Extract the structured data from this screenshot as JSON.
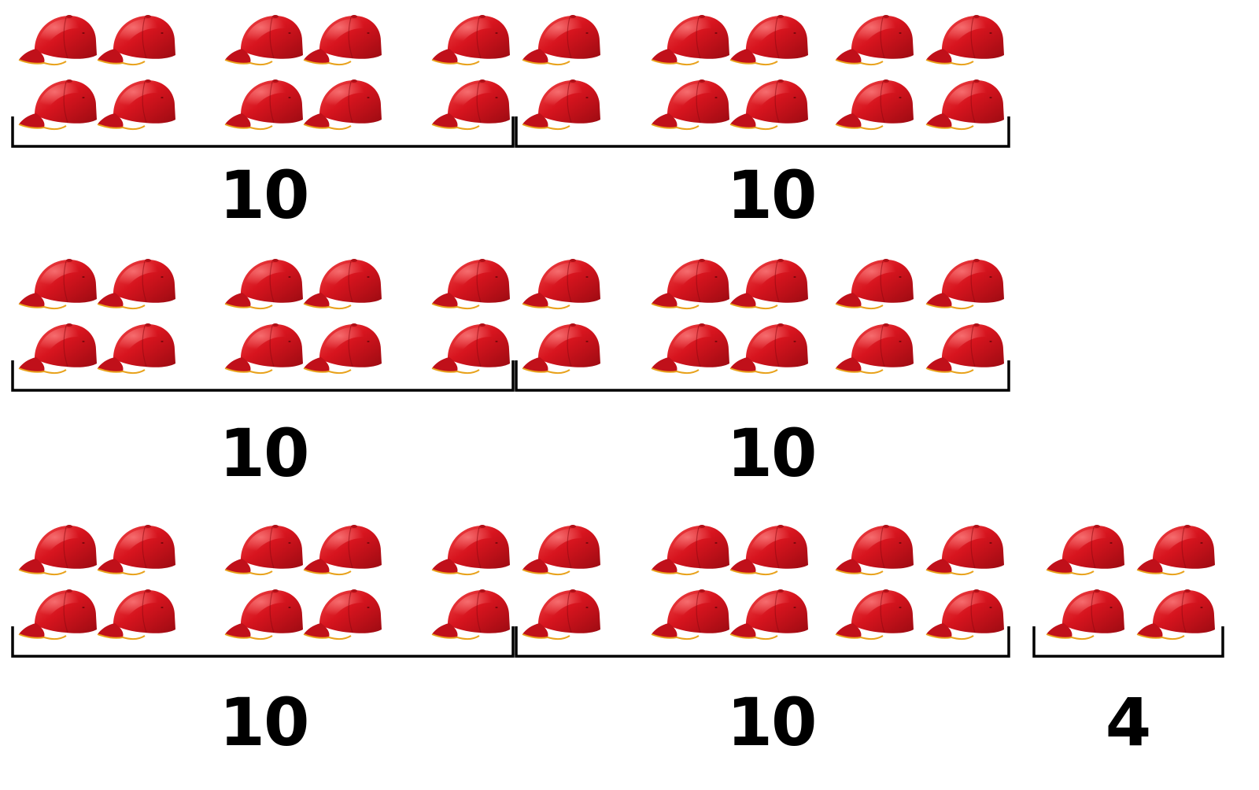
{
  "colors": {
    "cap_main": "#d7141e",
    "cap_dark": "#a10c14",
    "cap_light": "#ef5a5a",
    "cap_trim": "#e8a21c",
    "bracket": "#000000",
    "background": "#ffffff"
  },
  "icon": "baseball-cap-icon",
  "rows": [
    {
      "groups": [
        {
          "label": "10",
          "count": 10
        },
        {
          "label": "10",
          "count": 10
        }
      ]
    },
    {
      "groups": [
        {
          "label": "10",
          "count": 10
        },
        {
          "label": "10",
          "count": 10
        }
      ]
    },
    {
      "groups": [
        {
          "label": "10",
          "count": 10
        },
        {
          "label": "10",
          "count": 10
        },
        {
          "label": "4",
          "count": 4
        }
      ]
    }
  ]
}
